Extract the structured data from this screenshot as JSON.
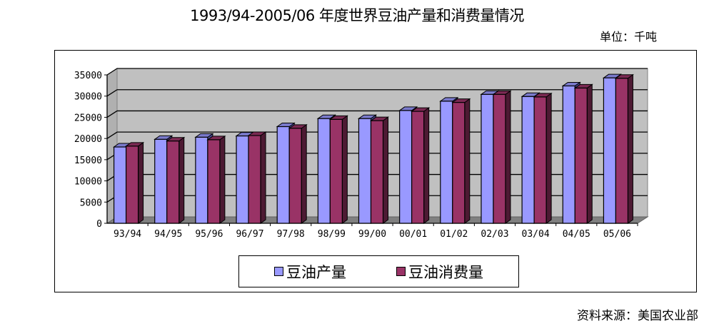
{
  "title": "1993/94-2005/06 年度世界豆油产量和消费量情况",
  "unit_label": "单位：千吨",
  "source_label": "资料来源：美国农业部",
  "legend": [
    {
      "label": "豆油产量",
      "color": "#9999FF"
    },
    {
      "label": "豆油消费量",
      "color": "#993366"
    }
  ],
  "colors": {
    "plot_back": "#C0C0C0",
    "floor": "#808080",
    "production": "#9999FF",
    "consumption": "#993366"
  },
  "chart_data": {
    "type": "bar",
    "style": "3d-clustered-column",
    "title": "1993/94-2005/06 年度世界豆油产量和消费量情况",
    "unit": "千吨",
    "xlabel": "",
    "ylabel": "",
    "categories": [
      "93/94",
      "94/95",
      "95/96",
      "96/97",
      "97/98",
      "98/99",
      "99/00",
      "00/01",
      "01/02",
      "02/03",
      "03/04",
      "04/05",
      "05/06"
    ],
    "series": [
      {
        "name": "豆油产量",
        "values": [
          18000,
          19800,
          20300,
          20600,
          22800,
          24700,
          24700,
          26600,
          28800,
          30400,
          29900,
          32400,
          34300
        ]
      },
      {
        "name": "豆油消费量",
        "values": [
          18200,
          19400,
          19700,
          20700,
          22400,
          24500,
          24200,
          26400,
          28500,
          30400,
          29800,
          31900,
          34200
        ]
      }
    ],
    "yticks": [
      0,
      5000,
      10000,
      15000,
      20000,
      25000,
      30000,
      35000
    ],
    "ylim": [
      0,
      35000
    ],
    "grid": true,
    "legend_position": "bottom",
    "source": "资料来源：美国农业部"
  }
}
